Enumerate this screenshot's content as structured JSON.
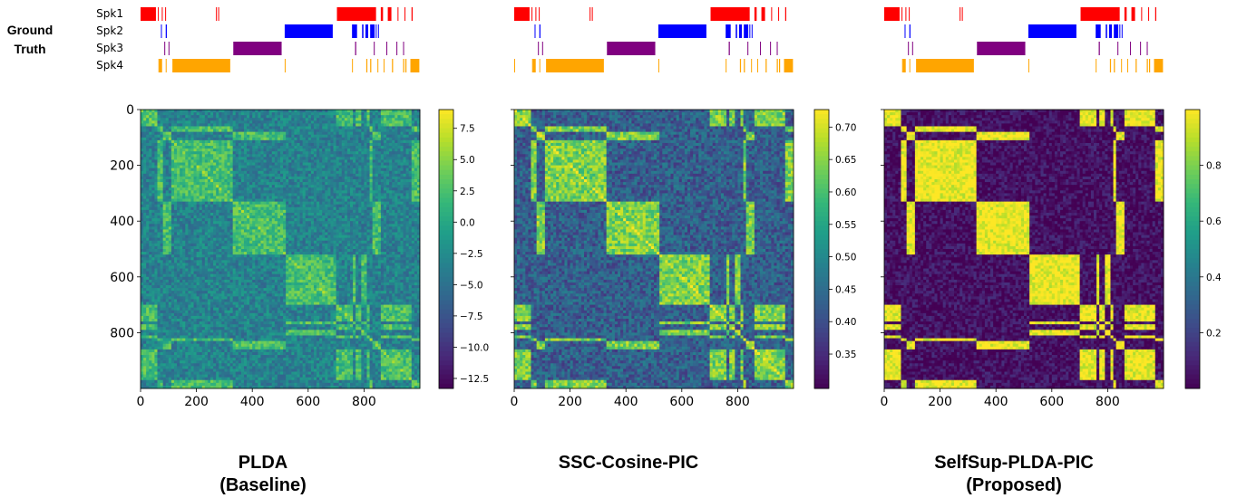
{
  "ground_truth_label": [
    "Ground",
    "Truth"
  ],
  "speaker_colors": {
    "Spk1": "#ff0000",
    "Spk2": "#0000ff",
    "Spk3": "#800080",
    "Spk4": "#ffa500"
  },
  "colormap": "viridis",
  "captions": [
    {
      "line1": "PLDA",
      "line2": "(Baseline)"
    },
    {
      "line1": "SSC-Cosine-PIC",
      "line2": ""
    },
    {
      "line1": "SelfSup-PLDA-PIC",
      "line2": "(Proposed)"
    }
  ],
  "chart_data": [
    {
      "type": "heatmap",
      "method": "PLDA (Baseline)",
      "x_ticks": [
        0,
        200,
        400,
        600,
        800
      ],
      "y_ticks": [
        0,
        200,
        400,
        600,
        800
      ],
      "n_segments": 1000,
      "colorbar": {
        "min": -13.3,
        "max": 9.0,
        "ticks": [
          7.5,
          5.0,
          2.5,
          0.0,
          -2.5,
          -5.0,
          -7.5,
          -10.0,
          -12.5
        ],
        "tick_labels": [
          "7.5",
          "5.0",
          "2.5",
          "0.0",
          "−2.5",
          "−5.0",
          "−7.5",
          "−10.0",
          "−12.5"
        ]
      },
      "levels": {
        "diagonal": 0.78,
        "same_speaker": 0.7,
        "diff_speaker": 0.44,
        "noise": 0.12
      },
      "ground_truth": {
        "speakers": [
          "Spk1",
          "Spk2",
          "Spk3",
          "Spk4"
        ],
        "segments": {
          "Spk1": [
            [
              0,
              55
            ],
            [
              62,
              64
            ],
            [
              76,
              78
            ],
            [
              88,
              90
            ],
            [
              270,
              273
            ],
            [
              278,
              280
            ],
            [
              703,
              843
            ],
            [
              860,
              868
            ],
            [
              885,
              898
            ],
            [
              920,
              923
            ],
            [
              945,
              948
            ],
            [
              970,
              974
            ]
          ],
          "Spk2": [
            [
              73,
              75
            ],
            [
              90,
              94
            ],
            [
              516,
              688
            ],
            [
              757,
              775
            ],
            [
              793,
              798
            ],
            [
              805,
              815
            ],
            [
              822,
              838
            ],
            [
              842,
              845
            ],
            [
              850,
              852
            ]
          ],
          "Spk3": [
            [
              85,
              87
            ],
            [
              100,
              102
            ],
            [
              332,
              505
            ],
            [
              768,
              772
            ],
            [
              835,
              837
            ],
            [
              880,
              882
            ],
            [
              916,
              918
            ],
            [
              940,
              942
            ]
          ],
          "Spk4": [
            [
              64,
              66
            ],
            [
              67,
              77
            ],
            [
              90,
              92
            ],
            [
              114,
              321
            ],
            [
              516,
              518
            ],
            [
              757,
              760
            ],
            [
              808,
              812
            ],
            [
              822,
              826
            ],
            [
              848,
              851
            ],
            [
              870,
              872
            ],
            [
              900,
              904
            ],
            [
              940,
              944
            ],
            [
              948,
              952
            ],
            [
              966,
              998
            ]
          ]
        }
      }
    },
    {
      "type": "heatmap",
      "method": "SSC-Cosine-PIC",
      "x_ticks": [
        0,
        200,
        400,
        600,
        800
      ],
      "y_ticks": [
        0,
        200,
        400,
        600,
        800
      ],
      "n_segments": 1000,
      "colorbar": {
        "min": 0.297,
        "max": 0.727,
        "ticks": [
          0.7,
          0.65,
          0.6,
          0.55,
          0.5,
          0.45,
          0.4,
          0.35
        ],
        "tick_labels": [
          "0.70",
          "0.65",
          "0.60",
          "0.55",
          "0.50",
          "0.45",
          "0.40",
          "0.35"
        ]
      },
      "levels": {
        "diagonal": 0.95,
        "same_speaker": 0.8,
        "diff_speaker": 0.3,
        "noise": 0.14
      },
      "ground_truth": {
        "speakers": [
          "Spk1",
          "Spk2",
          "Spk3",
          "Spk4"
        ],
        "segments": {
          "Spk1": [
            [
              0,
              55
            ],
            [
              62,
              64
            ],
            [
              76,
              78
            ],
            [
              88,
              90
            ],
            [
              270,
              273
            ],
            [
              278,
              280
            ],
            [
              703,
              843
            ],
            [
              860,
              868
            ],
            [
              885,
              898
            ],
            [
              920,
              923
            ],
            [
              945,
              948
            ],
            [
              970,
              974
            ]
          ],
          "Spk2": [
            [
              73,
              75
            ],
            [
              90,
              94
            ],
            [
              516,
              688
            ],
            [
              757,
              775
            ],
            [
              793,
              798
            ],
            [
              805,
              815
            ],
            [
              822,
              838
            ],
            [
              842,
              845
            ],
            [
              850,
              852
            ]
          ],
          "Spk3": [
            [
              85,
              87
            ],
            [
              100,
              102
            ],
            [
              332,
              505
            ],
            [
              768,
              772
            ],
            [
              835,
              837
            ],
            [
              880,
              882
            ],
            [
              916,
              918
            ],
            [
              940,
              942
            ]
          ],
          "Spk4": [
            [
              0,
              2
            ],
            [
              64,
              66
            ],
            [
              67,
              77
            ],
            [
              90,
              92
            ],
            [
              114,
              321
            ],
            [
              516,
              518
            ],
            [
              757,
              760
            ],
            [
              808,
              812
            ],
            [
              822,
              826
            ],
            [
              848,
              851
            ],
            [
              870,
              872
            ],
            [
              900,
              904
            ],
            [
              940,
              944
            ],
            [
              948,
              952
            ],
            [
              966,
              998
            ]
          ]
        }
      }
    },
    {
      "type": "heatmap",
      "method": "SelfSup-PLDA-PIC",
      "x_ticks": [
        0,
        200,
        400,
        600,
        800
      ],
      "y_ticks": [
        0,
        200,
        400,
        600,
        800
      ],
      "n_segments": 1000,
      "colorbar": {
        "min": 0.0,
        "max": 1.0,
        "ticks": [
          0.8,
          0.6,
          0.4,
          0.2
        ],
        "tick_labels": [
          "0.8",
          "0.6",
          "0.4",
          "0.2"
        ]
      },
      "levels": {
        "diagonal": 1.0,
        "same_speaker": 0.97,
        "diff_speaker": 0.04,
        "noise": 0.1
      },
      "ground_truth": {
        "speakers": [
          "Spk1",
          "Spk2",
          "Spk3",
          "Spk4"
        ],
        "segments": {
          "Spk1": [
            [
              0,
              55
            ],
            [
              62,
              64
            ],
            [
              76,
              78
            ],
            [
              88,
              90
            ],
            [
              270,
              273
            ],
            [
              278,
              280
            ],
            [
              703,
              843
            ],
            [
              860,
              868
            ],
            [
              885,
              898
            ],
            [
              920,
              923
            ],
            [
              945,
              948
            ],
            [
              970,
              974
            ]
          ],
          "Spk2": [
            [
              73,
              75
            ],
            [
              90,
              94
            ],
            [
              516,
              688
            ],
            [
              757,
              775
            ],
            [
              793,
              798
            ],
            [
              805,
              815
            ],
            [
              822,
              838
            ],
            [
              842,
              845
            ],
            [
              850,
              852
            ]
          ],
          "Spk3": [
            [
              85,
              87
            ],
            [
              100,
              102
            ],
            [
              332,
              505
            ],
            [
              768,
              772
            ],
            [
              835,
              837
            ],
            [
              880,
              882
            ],
            [
              916,
              918
            ],
            [
              940,
              942
            ]
          ],
          "Spk4": [
            [
              64,
              66
            ],
            [
              67,
              77
            ],
            [
              90,
              92
            ],
            [
              114,
              321
            ],
            [
              516,
              518
            ],
            [
              757,
              760
            ],
            [
              808,
              812
            ],
            [
              822,
              826
            ],
            [
              848,
              851
            ],
            [
              870,
              872
            ],
            [
              900,
              904
            ],
            [
              940,
              944
            ],
            [
              948,
              952
            ],
            [
              966,
              998
            ]
          ]
        }
      }
    }
  ]
}
